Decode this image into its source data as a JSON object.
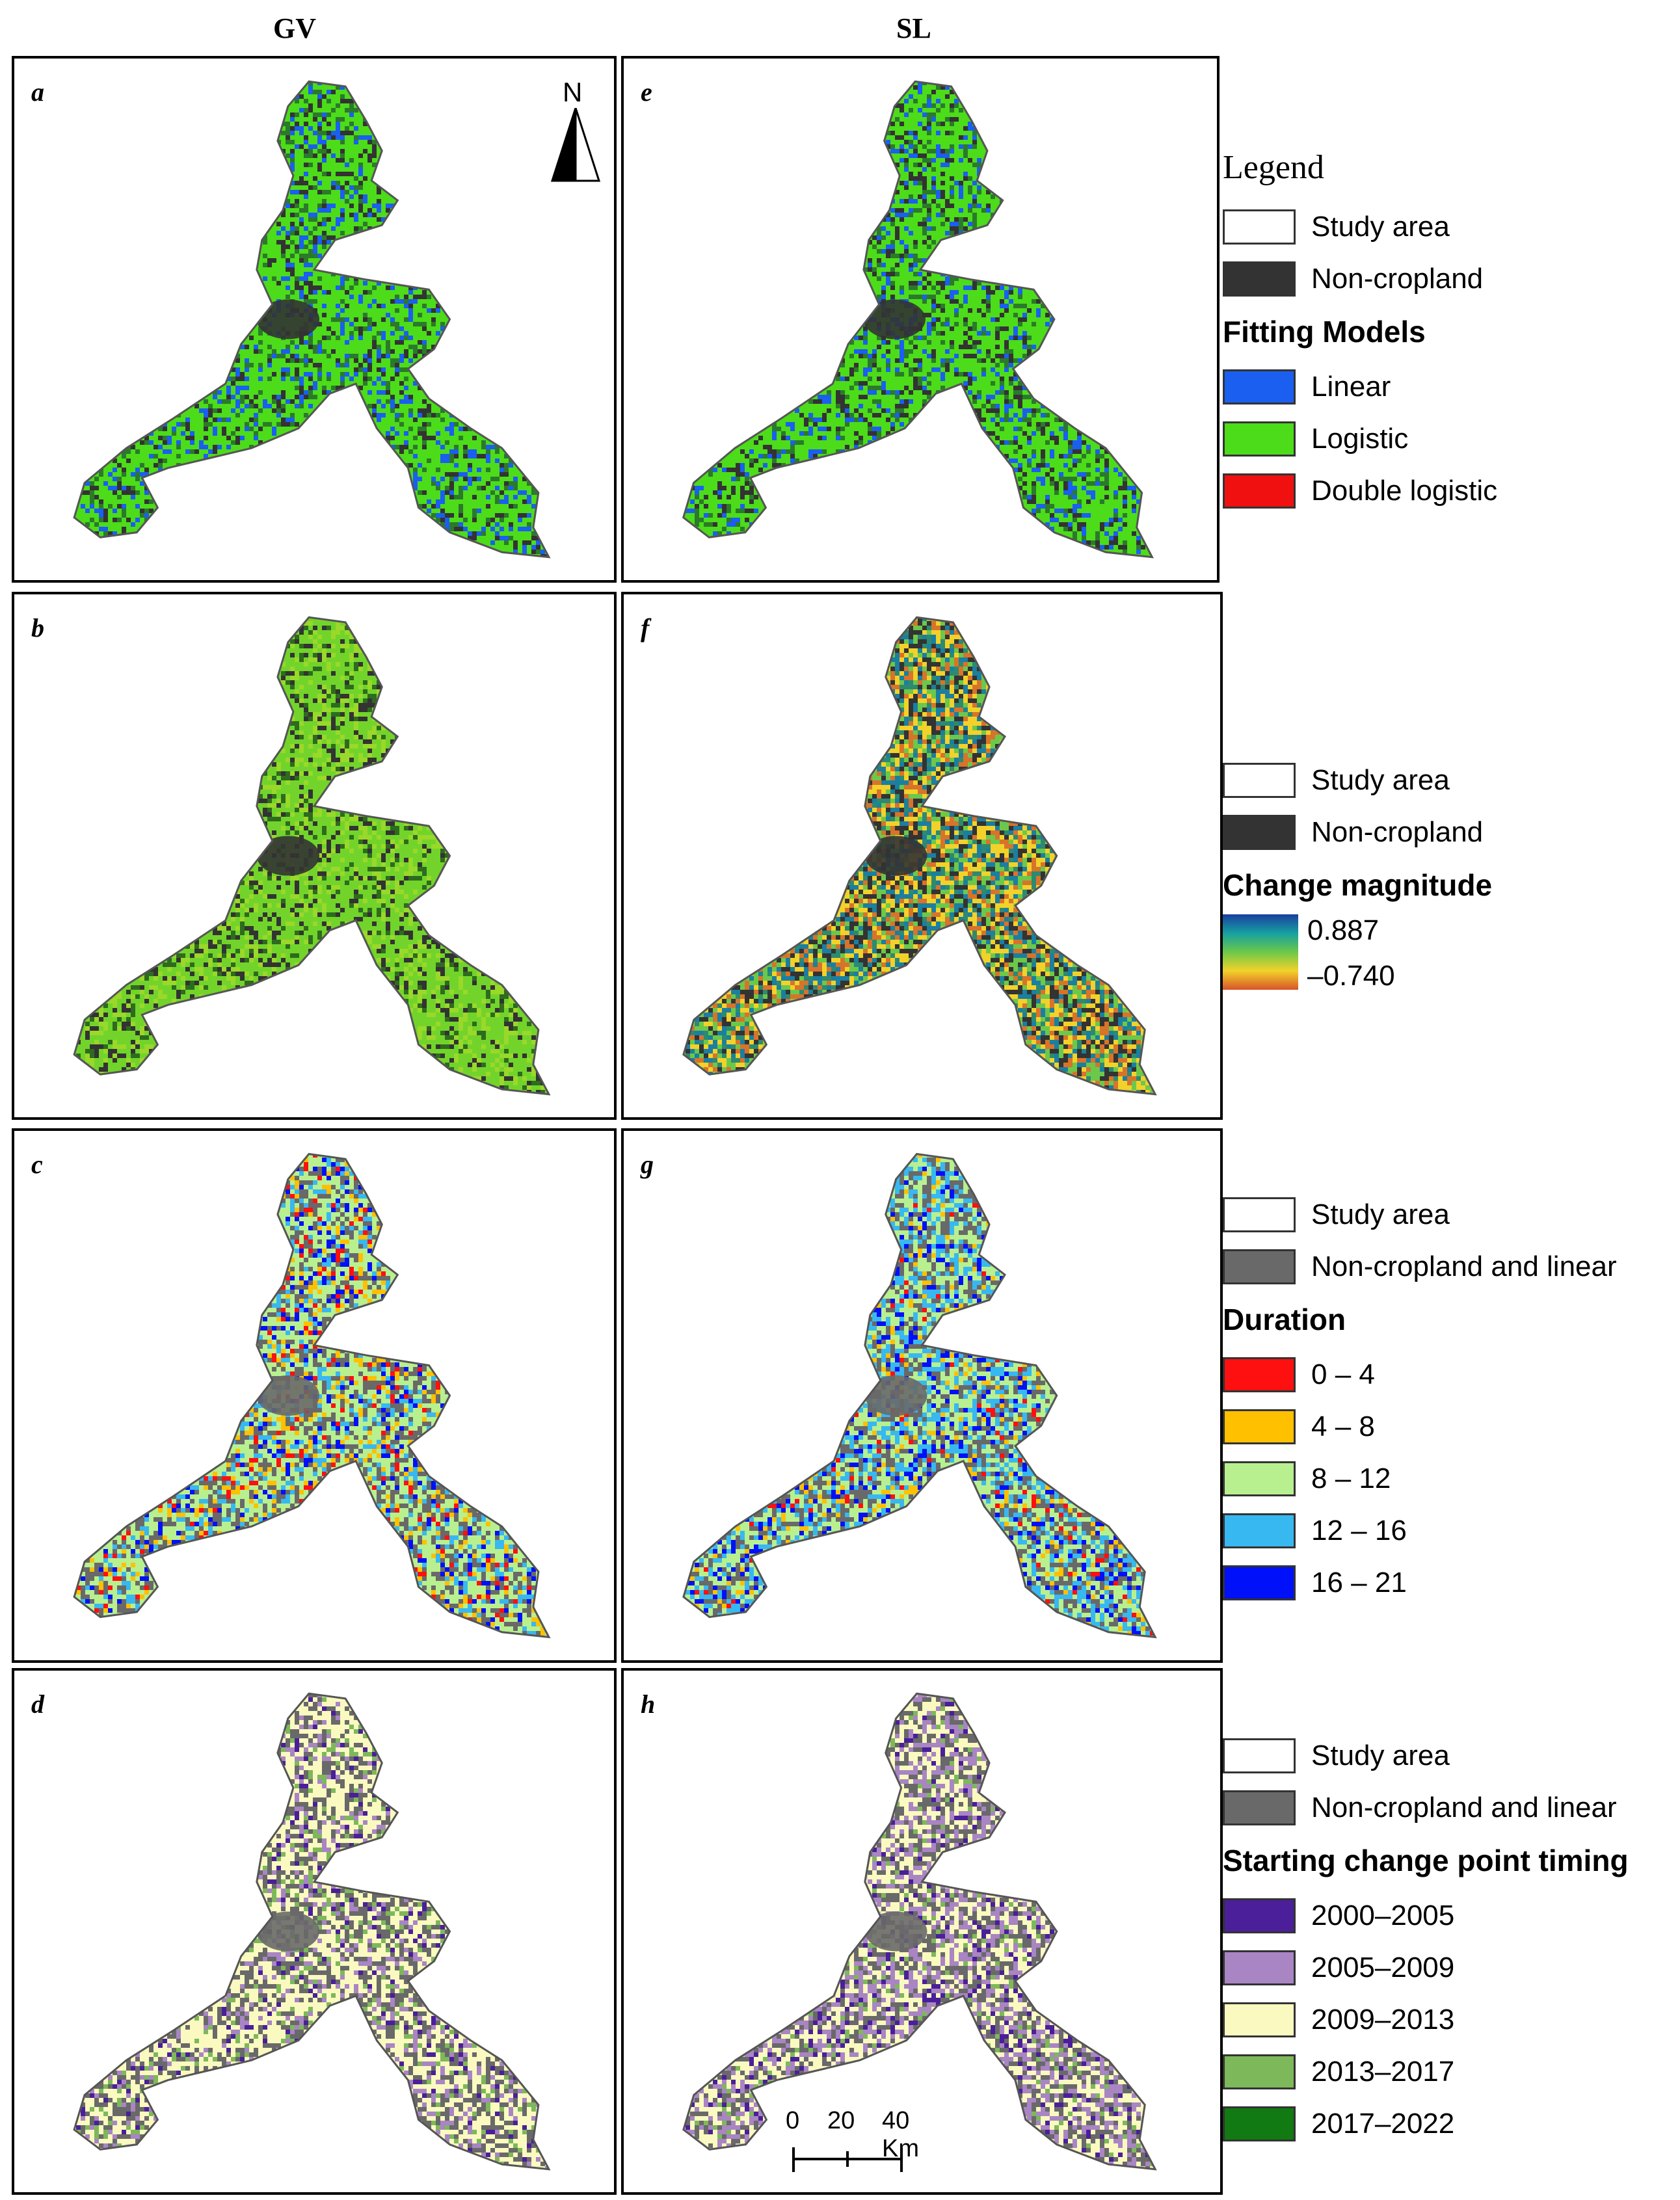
{
  "columns": {
    "left": "GV",
    "right": "SL"
  },
  "panels": {
    "a": {
      "label": "a",
      "scheme": "fitting"
    },
    "b": {
      "label": "b",
      "scheme": "gv_magnitude"
    },
    "c": {
      "label": "c",
      "scheme": "gv_duration"
    },
    "d": {
      "label": "d",
      "scheme": "gv_timing"
    },
    "e": {
      "label": "e",
      "scheme": "fitting"
    },
    "f": {
      "label": "f",
      "scheme": "sl_magnitude"
    },
    "g": {
      "label": "g",
      "scheme": "sl_duration"
    },
    "h": {
      "label": "h",
      "scheme": "sl_timing"
    }
  },
  "north_arrow": {
    "letter": "N",
    "icon": "north-arrow-icon"
  },
  "scale_bar": {
    "labels": [
      "0",
      "20",
      "40 Km"
    ]
  },
  "legend1": {
    "title": "Legend",
    "base": [
      {
        "label": "Study area",
        "color": "#ffffff"
      },
      {
        "label": "Non-cropland",
        "color": "#333333"
      }
    ],
    "heading": "Fitting Models",
    "items": [
      {
        "label": "Linear",
        "color": "#1a5ff0"
      },
      {
        "label": "Logistic",
        "color": "#4cdc1a"
      },
      {
        "label": "Double logistic",
        "color": "#f01010"
      }
    ]
  },
  "legend2": {
    "base": [
      {
        "label": "Study area",
        "color": "#ffffff"
      },
      {
        "label": "Non-cropland",
        "color": "#333333"
      }
    ],
    "heading": "Change magnitude",
    "ramp_max": "0.887",
    "ramp_min": "–0.740"
  },
  "legend3": {
    "base": [
      {
        "label": "Study area",
        "color": "#ffffff"
      },
      {
        "label": "Non-cropland and linear",
        "color": "#696969"
      }
    ],
    "heading": "Duration",
    "items": [
      {
        "label": "0 – 4",
        "color": "#ff1010"
      },
      {
        "label": "4 – 8",
        "color": "#ffc000"
      },
      {
        "label": "8 – 12",
        "color": "#b8f090"
      },
      {
        "label": "12 – 16",
        "color": "#38b8f0"
      },
      {
        "label": "16 – 21",
        "color": "#0010f8"
      }
    ]
  },
  "legend4": {
    "base": [
      {
        "label": "Study area",
        "color": "#ffffff"
      },
      {
        "label": "Non-cropland and linear",
        "color": "#696969"
      }
    ],
    "heading": "Starting change point timing",
    "items": [
      {
        "label": "2000–2005",
        "color": "#4b1f99"
      },
      {
        "label": "2005–2009",
        "color": "#a985c4"
      },
      {
        "label": "2009–2013",
        "color": "#fafac0"
      },
      {
        "label": "2013–2017",
        "color": "#7db85a"
      },
      {
        "label": "2017–2022",
        "color": "#127a12"
      }
    ]
  }
}
